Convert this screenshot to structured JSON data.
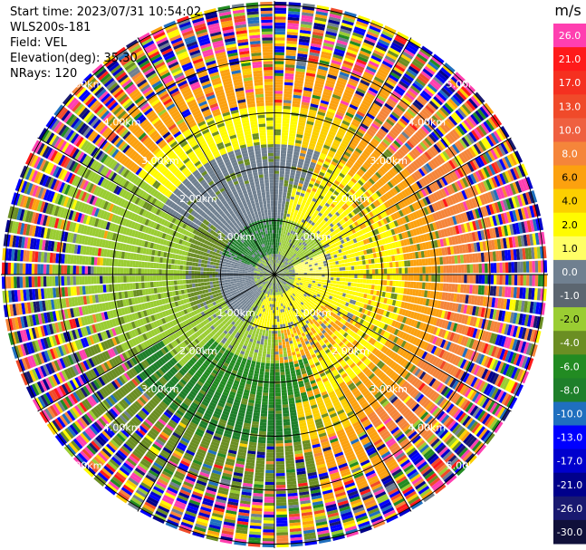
{
  "info": {
    "start_time": "Start time: 2023/07/31 10:54:02",
    "instrument": "WLS200s-181",
    "field": "Field: VEL",
    "elevation": "Elevation(deg): 35.30",
    "nrays": "NRays: 120"
  },
  "range_rings": [
    "1.00km",
    "2.00km",
    "3.00km",
    "4.00km",
    "5.00km"
  ],
  "colorbar": {
    "unit": "m/s",
    "ticks": [
      "26.0",
      "21.0",
      "17.0",
      "13.0",
      "10.0",
      "8.0",
      "6.0",
      "4.0",
      "2.0",
      "1.0",
      "0.0",
      "-1.0",
      "-2.0",
      "-4.0",
      "-6.0",
      "-8.0",
      "-10.0",
      "-13.0",
      "-17.0",
      "-21.0",
      "-26.0",
      "-30.0"
    ],
    "colors": [
      "#ff3fb0",
      "#ff1a1a",
      "#f53020",
      "#f04a2a",
      "#ef6040",
      "#f5853a",
      "#fca10f",
      "#fccf00",
      "#fffb00",
      "#ffff66",
      "#708090",
      "#5c6670",
      "#9acd32",
      "#6b8e23",
      "#228b22",
      "#1e7f2a",
      "#1f6fbf",
      "#0000ff",
      "#0000cd",
      "#00008b",
      "#191970",
      "#10103a"
    ]
  }
}
